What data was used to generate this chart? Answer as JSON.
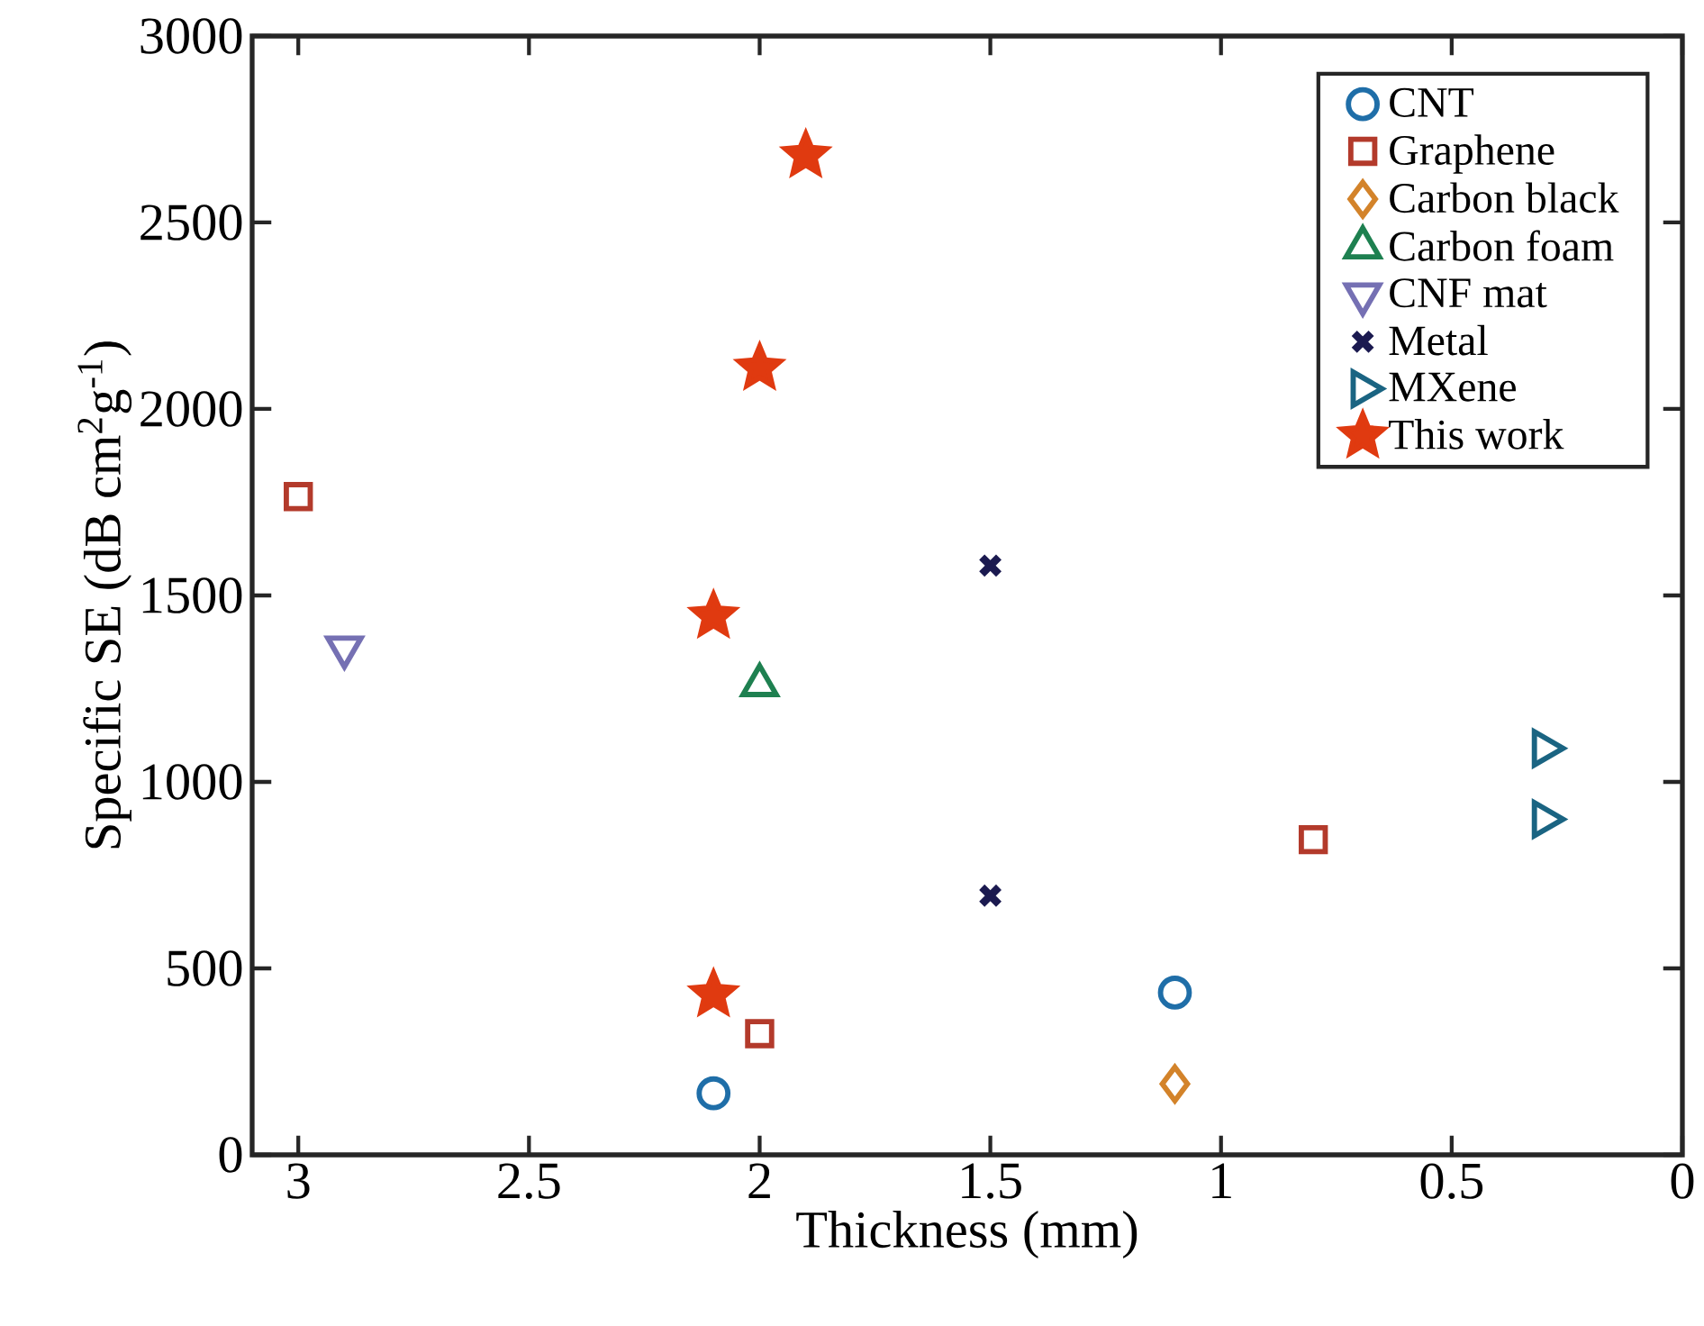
{
  "chart_data": {
    "type": "scatter",
    "xlabel": "Thickness (mm)",
    "ylabel": "Specific SE (dB cm$^{2}$g$^{-1}$)",
    "xlim": [
      3.1,
      0
    ],
    "ylim": [
      0,
      3000
    ],
    "xticks": [
      3,
      2.5,
      2,
      1.5,
      1,
      0.5,
      0
    ],
    "yticks": [
      0,
      500,
      1000,
      1500,
      2000,
      2500,
      3000
    ],
    "grid": false,
    "legend": "top right",
    "series": [
      {
        "name": "CNT",
        "color": "#1f6ea8",
        "marker": "circle",
        "x": [
          2.1,
          1.1
        ],
        "values": [
          165,
          435
        ]
      },
      {
        "name": "Graphene",
        "color": "#b33a2b",
        "marker": "square",
        "x": [
          3.0,
          2.0,
          0.8
        ],
        "values": [
          1765,
          325,
          845
        ]
      },
      {
        "name": "Carbon black",
        "color": "#d3832a",
        "marker": "diamond",
        "x": [
          1.1
        ],
        "values": [
          190
        ]
      },
      {
        "name": "Carbon foam",
        "color": "#1e8050",
        "marker": "triangle",
        "x": [
          2.0
        ],
        "values": [
          1260
        ]
      },
      {
        "name": "CNF mat",
        "color": "#7570b3",
        "marker": "triangle-down",
        "x": [
          2.9
        ],
        "values": [
          1360
        ]
      },
      {
        "name": "Metal",
        "color": "#1b1a50",
        "marker": "cross",
        "x": [
          1.5,
          1.5
        ],
        "values": [
          1580,
          695
        ]
      },
      {
        "name": "MXene",
        "color": "#1a6482",
        "marker": "triangle-right",
        "x": [
          0.3,
          0.3
        ],
        "values": [
          1090,
          900
        ]
      },
      {
        "name": "This work",
        "color": "#e03a10",
        "marker": "star",
        "x": [
          1.9,
          2.0,
          2.1,
          2.1
        ],
        "values": [
          2680,
          2110,
          1445,
          430
        ]
      }
    ]
  }
}
